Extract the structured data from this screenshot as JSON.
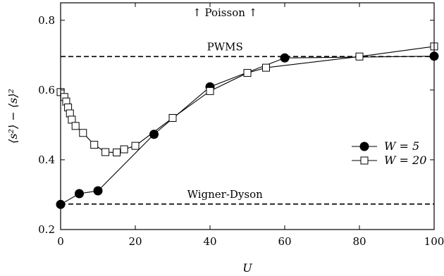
{
  "chart_data": {
    "type": "line",
    "title": "",
    "xlabel": "U",
    "ylabel": "⟨s²⟩ − ⟨s⟩²",
    "xlim": [
      0,
      100
    ],
    "ylim": [
      0.2,
      0.85
    ],
    "x_ticks": [
      0,
      20,
      40,
      60,
      80,
      100
    ],
    "x_tick_labels": [
      "0",
      "20",
      "40",
      "60",
      "80",
      "100"
    ],
    "y_ticks": [
      0.2,
      0.4,
      0.6,
      0.8
    ],
    "y_tick_labels": [
      "0.2",
      "0.4",
      "0.6",
      "0.8"
    ],
    "grid": false,
    "legend_position": "right",
    "series": [
      {
        "name": "W = 5",
        "marker": "filled-circle",
        "color": "#000000",
        "x": [
          0,
          5,
          10,
          25,
          40,
          60,
          100
        ],
        "y": [
          0.272,
          0.303,
          0.311,
          0.473,
          0.609,
          0.692,
          0.697
        ]
      },
      {
        "name": "W = 20",
        "marker": "open-square",
        "color": "#000000",
        "x": [
          0,
          1,
          1.5,
          2,
          2.5,
          3,
          4,
          6,
          9,
          12,
          15,
          17,
          20,
          30,
          40,
          50,
          55,
          80,
          100
        ],
        "y": [
          0.594,
          0.58,
          0.567,
          0.55,
          0.533,
          0.515,
          0.497,
          0.477,
          0.443,
          0.422,
          0.421,
          0.43,
          0.44,
          0.52,
          0.597,
          0.649,
          0.664,
          0.696,
          0.725
        ]
      }
    ],
    "reference_lines": [
      {
        "label": "PWMS",
        "y": 0.696,
        "style": "dashed"
      },
      {
        "label": "Wigner-Dyson",
        "y": 0.273,
        "style": "dashed"
      }
    ],
    "annotations": [
      {
        "text": "↑ Poisson ↑"
      }
    ]
  }
}
